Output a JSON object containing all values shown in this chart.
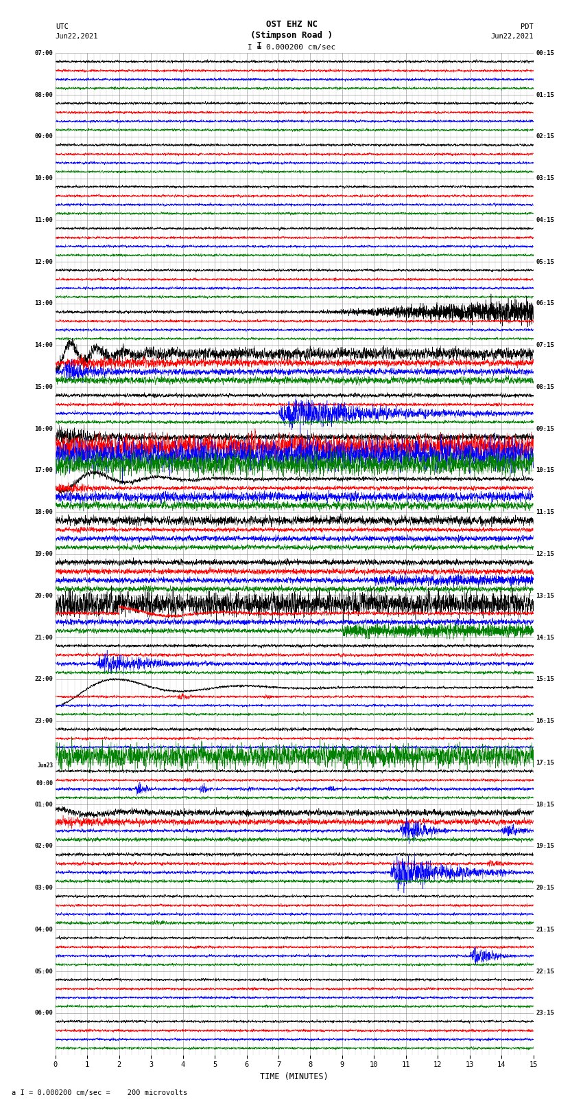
{
  "title_line1": "OST EHZ NC",
  "title_line2": "(Stimpson Road )",
  "scale_text": "I = 0.000200 cm/sec",
  "label_utc": "UTC",
  "label_pdt": "PDT",
  "label_date_left": "Jun22,2021",
  "label_date_right": "Jun22,2021",
  "xlabel": "TIME (MINUTES)",
  "footer": "a I = 0.000200 cm/sec =    200 microvolts",
  "x_ticks": [
    0,
    1,
    2,
    3,
    4,
    5,
    6,
    7,
    8,
    9,
    10,
    11,
    12,
    13,
    14,
    15
  ],
  "utc_times": [
    "07:00",
    "08:00",
    "09:00",
    "10:00",
    "11:00",
    "12:00",
    "13:00",
    "14:00",
    "15:00",
    "16:00",
    "17:00",
    "18:00",
    "19:00",
    "20:00",
    "21:00",
    "22:00",
    "23:00",
    "Jun23\n00:00",
    "01:00",
    "02:00",
    "03:00",
    "04:00",
    "05:00",
    "06:00"
  ],
  "pdt_times": [
    "00:15",
    "01:15",
    "02:15",
    "03:15",
    "04:15",
    "05:15",
    "06:15",
    "07:15",
    "08:15",
    "09:15",
    "10:15",
    "11:15",
    "12:15",
    "13:15",
    "14:15",
    "15:15",
    "16:15",
    "17:15",
    "18:15",
    "19:15",
    "20:15",
    "21:15",
    "22:15",
    "23:15"
  ],
  "n_rows": 24,
  "colors": [
    "black",
    "red",
    "blue",
    "green"
  ],
  "bg_color": "#ffffff",
  "grid_color": "#888888",
  "figsize": [
    8.5,
    16.13
  ],
  "dpi": 100
}
